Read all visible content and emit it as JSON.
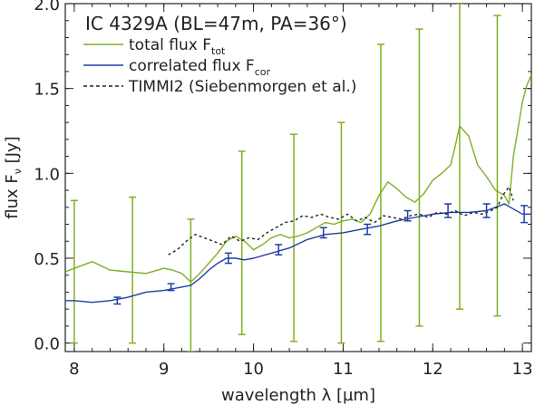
{
  "chart_data": {
    "type": "line",
    "title": "IC 4329A (BL=47m, PA=36°)",
    "xlabel": "wavelength λ [µm]",
    "ylabel": "flux F",
    "ylabel_sub": "ν",
    "ylabel_unit": "[Jy]",
    "xlim": [
      7.9,
      13.1
    ],
    "ylim": [
      -0.05,
      2.0
    ],
    "xticks": [
      8,
      9,
      10,
      11,
      12,
      13
    ],
    "xtick_labels": [
      "8",
      "9",
      "10",
      "11",
      "12",
      "13"
    ],
    "yticks": [
      0.0,
      0.5,
      1.0,
      1.5,
      2.0
    ],
    "ytick_labels": [
      "0.0",
      "0.5",
      "1.0",
      "1.5",
      "2.0"
    ],
    "grid": false,
    "legend_position": "top-left",
    "series": [
      {
        "name": "total flux F",
        "name_sub": "tot",
        "color": "#7db122",
        "style": "solid",
        "x": [
          7.9,
          8.0,
          8.2,
          8.4,
          8.6,
          8.8,
          9.0,
          9.1,
          9.2,
          9.3,
          9.4,
          9.5,
          9.6,
          9.7,
          9.8,
          9.9,
          10.0,
          10.1,
          10.2,
          10.3,
          10.4,
          10.5,
          10.6,
          10.7,
          10.8,
          10.9,
          11.0,
          11.1,
          11.2,
          11.3,
          11.4,
          11.5,
          11.6,
          11.7,
          11.8,
          11.9,
          12.0,
          12.1,
          12.2,
          12.25,
          12.3,
          12.4,
          12.5,
          12.6,
          12.7,
          12.8,
          12.85,
          12.9,
          13.0,
          13.05,
          13.1
        ],
        "values": [
          0.42,
          0.44,
          0.48,
          0.43,
          0.42,
          0.41,
          0.44,
          0.43,
          0.41,
          0.36,
          0.41,
          0.47,
          0.53,
          0.6,
          0.63,
          0.6,
          0.55,
          0.58,
          0.62,
          0.64,
          0.62,
          0.63,
          0.65,
          0.68,
          0.71,
          0.7,
          0.72,
          0.73,
          0.71,
          0.76,
          0.87,
          0.95,
          0.91,
          0.86,
          0.83,
          0.88,
          0.96,
          1.0,
          1.05,
          1.16,
          1.28,
          1.22,
          1.05,
          0.98,
          0.9,
          0.87,
          0.82,
          1.1,
          1.42,
          1.52,
          1.58
        ]
      },
      {
        "name": "correlated flux F",
        "name_sub": "cor",
        "color": "#1f3fa8",
        "style": "solid",
        "x": [
          7.9,
          8.0,
          8.2,
          8.4,
          8.6,
          8.8,
          9.0,
          9.1,
          9.2,
          9.3,
          9.4,
          9.5,
          9.6,
          9.7,
          9.8,
          9.9,
          10.0,
          10.2,
          10.4,
          10.6,
          10.8,
          11.0,
          11.2,
          11.4,
          11.6,
          11.8,
          12.0,
          12.2,
          12.4,
          12.6,
          12.7,
          12.8,
          12.9,
          13.0,
          13.1
        ],
        "values": [
          0.25,
          0.25,
          0.24,
          0.25,
          0.27,
          0.3,
          0.31,
          0.32,
          0.33,
          0.34,
          0.38,
          0.43,
          0.47,
          0.5,
          0.5,
          0.49,
          0.5,
          0.53,
          0.56,
          0.61,
          0.64,
          0.65,
          0.67,
          0.69,
          0.72,
          0.74,
          0.76,
          0.77,
          0.77,
          0.78,
          0.8,
          0.82,
          0.79,
          0.76,
          0.76
        ]
      },
      {
        "name": "TIMMI2 (Siebenmorgen et al.)",
        "color": "#222222",
        "style": "dashed",
        "x": [
          9.05,
          9.15,
          9.25,
          9.35,
          9.45,
          9.55,
          9.65,
          9.75,
          9.85,
          9.95,
          10.05,
          10.15,
          10.25,
          10.35,
          10.45,
          10.55,
          10.65,
          10.75,
          10.85,
          10.95,
          11.05,
          11.15,
          11.25,
          11.35,
          11.45,
          11.55,
          11.65,
          11.75,
          11.85,
          11.95,
          12.05,
          12.15,
          12.25,
          12.35,
          12.45,
          12.55,
          12.65,
          12.72,
          12.78,
          12.85,
          12.9
        ],
        "values": [
          0.52,
          0.55,
          0.6,
          0.64,
          0.62,
          0.6,
          0.58,
          0.63,
          0.6,
          0.62,
          0.61,
          0.65,
          0.68,
          0.71,
          0.72,
          0.75,
          0.74,
          0.76,
          0.74,
          0.73,
          0.76,
          0.72,
          0.74,
          0.71,
          0.75,
          0.74,
          0.73,
          0.75,
          0.76,
          0.74,
          0.77,
          0.76,
          0.78,
          0.75,
          0.77,
          0.76,
          0.78,
          0.8,
          0.87,
          0.92,
          0.84
        ]
      }
    ],
    "error_bars": [
      {
        "series": "total flux F",
        "color": "#7db122",
        "points": [
          {
            "x": 8.0,
            "y": 0.44,
            "low": 0.0,
            "high": 0.84
          },
          {
            "x": 8.65,
            "y": 0.42,
            "low": 0.0,
            "high": 0.86
          },
          {
            "x": 9.3,
            "y": 0.36,
            "low": -0.05,
            "high": 0.73
          },
          {
            "x": 9.87,
            "y": 0.6,
            "low": 0.05,
            "high": 1.13
          },
          {
            "x": 10.45,
            "y": 0.62,
            "low": 0.01,
            "high": 1.23
          },
          {
            "x": 10.98,
            "y": 0.7,
            "low": 0.0,
            "high": 1.3
          },
          {
            "x": 11.42,
            "y": 0.88,
            "low": 0.01,
            "high": 1.76
          },
          {
            "x": 11.85,
            "y": 0.85,
            "low": 0.1,
            "high": 1.85
          },
          {
            "x": 12.3,
            "y": 1.27,
            "low": 0.2,
            "high": 2.0
          },
          {
            "x": 12.72,
            "y": 0.9,
            "low": 0.16,
            "high": 1.93
          }
        ]
      },
      {
        "series": "correlated flux F",
        "color": "#1f3fa8",
        "points": [
          {
            "x": 8.48,
            "y": 0.25,
            "low": 0.23,
            "high": 0.27
          },
          {
            "x": 9.08,
            "y": 0.33,
            "low": 0.31,
            "high": 0.35
          },
          {
            "x": 9.72,
            "y": 0.5,
            "low": 0.47,
            "high": 0.53
          },
          {
            "x": 10.28,
            "y": 0.55,
            "low": 0.52,
            "high": 0.58
          },
          {
            "x": 10.78,
            "y": 0.65,
            "low": 0.62,
            "high": 0.68
          },
          {
            "x": 11.27,
            "y": 0.67,
            "low": 0.64,
            "high": 0.7
          },
          {
            "x": 11.72,
            "y": 0.75,
            "low": 0.72,
            "high": 0.78
          },
          {
            "x": 12.17,
            "y": 0.78,
            "low": 0.74,
            "high": 0.82
          },
          {
            "x": 12.6,
            "y": 0.78,
            "low": 0.74,
            "high": 0.82
          },
          {
            "x": 13.02,
            "y": 0.76,
            "low": 0.71,
            "high": 0.81
          }
        ]
      }
    ]
  }
}
